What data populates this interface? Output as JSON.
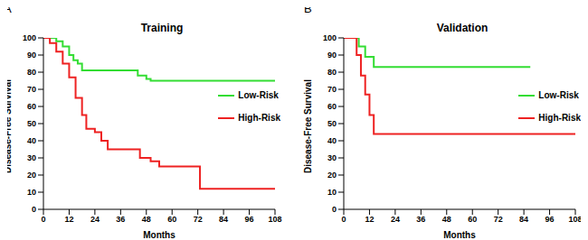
{
  "chart_data": [
    {
      "type": "line",
      "title": "Training",
      "annotations": [
        "A"
      ],
      "x_label": "Months",
      "y_label": "Disease-Free Survival",
      "xlim": [
        0,
        108
      ],
      "xticks": [
        0,
        12,
        24,
        36,
        48,
        60,
        72,
        84,
        96,
        108
      ],
      "ylim": [
        0,
        100
      ],
      "yticks": [
        0,
        10,
        20,
        30,
        40,
        50,
        60,
        70,
        80,
        90,
        100
      ],
      "line_style": "step",
      "legend": "right",
      "series": [
        {
          "name": "Low-Risk",
          "color": "#33dd33",
          "x": [
            0,
            6,
            9,
            12,
            14,
            16,
            18,
            44,
            48,
            50,
            108
          ],
          "values": [
            100,
            98,
            95,
            90,
            87,
            85,
            81,
            78,
            76,
            75,
            75
          ]
        },
        {
          "name": "High-Risk",
          "color": "#ee2222",
          "x": [
            0,
            3,
            6,
            9,
            12,
            15,
            18,
            20,
            24,
            27,
            30,
            45,
            50,
            54,
            73,
            108
          ],
          "values": [
            100,
            97,
            92,
            85,
            77,
            65,
            55,
            47,
            45,
            40,
            35,
            30,
            28,
            25,
            12,
            12
          ]
        }
      ]
    },
    {
      "type": "line",
      "title": "Validation",
      "annotations": [
        "B"
      ],
      "x_label": "Months",
      "y_label": "Disease-Free Survival",
      "xlim": [
        0,
        108
      ],
      "xticks": [
        0,
        12,
        24,
        36,
        48,
        60,
        72,
        84,
        96,
        108
      ],
      "ylim": [
        0,
        100
      ],
      "yticks": [
        0,
        10,
        20,
        30,
        40,
        50,
        60,
        70,
        80,
        90,
        100
      ],
      "line_style": "step",
      "legend": "right",
      "series": [
        {
          "name": "Low-Risk",
          "color": "#33dd33",
          "x": [
            0,
            7,
            10,
            14,
            87
          ],
          "values": [
            100,
            95,
            89,
            83,
            83
          ]
        },
        {
          "name": "High-Risk",
          "color": "#ee2222",
          "x": [
            0,
            6,
            8,
            10,
            12,
            14,
            108
          ],
          "values": [
            100,
            90,
            78,
            67,
            55,
            44,
            44
          ]
        }
      ]
    }
  ]
}
